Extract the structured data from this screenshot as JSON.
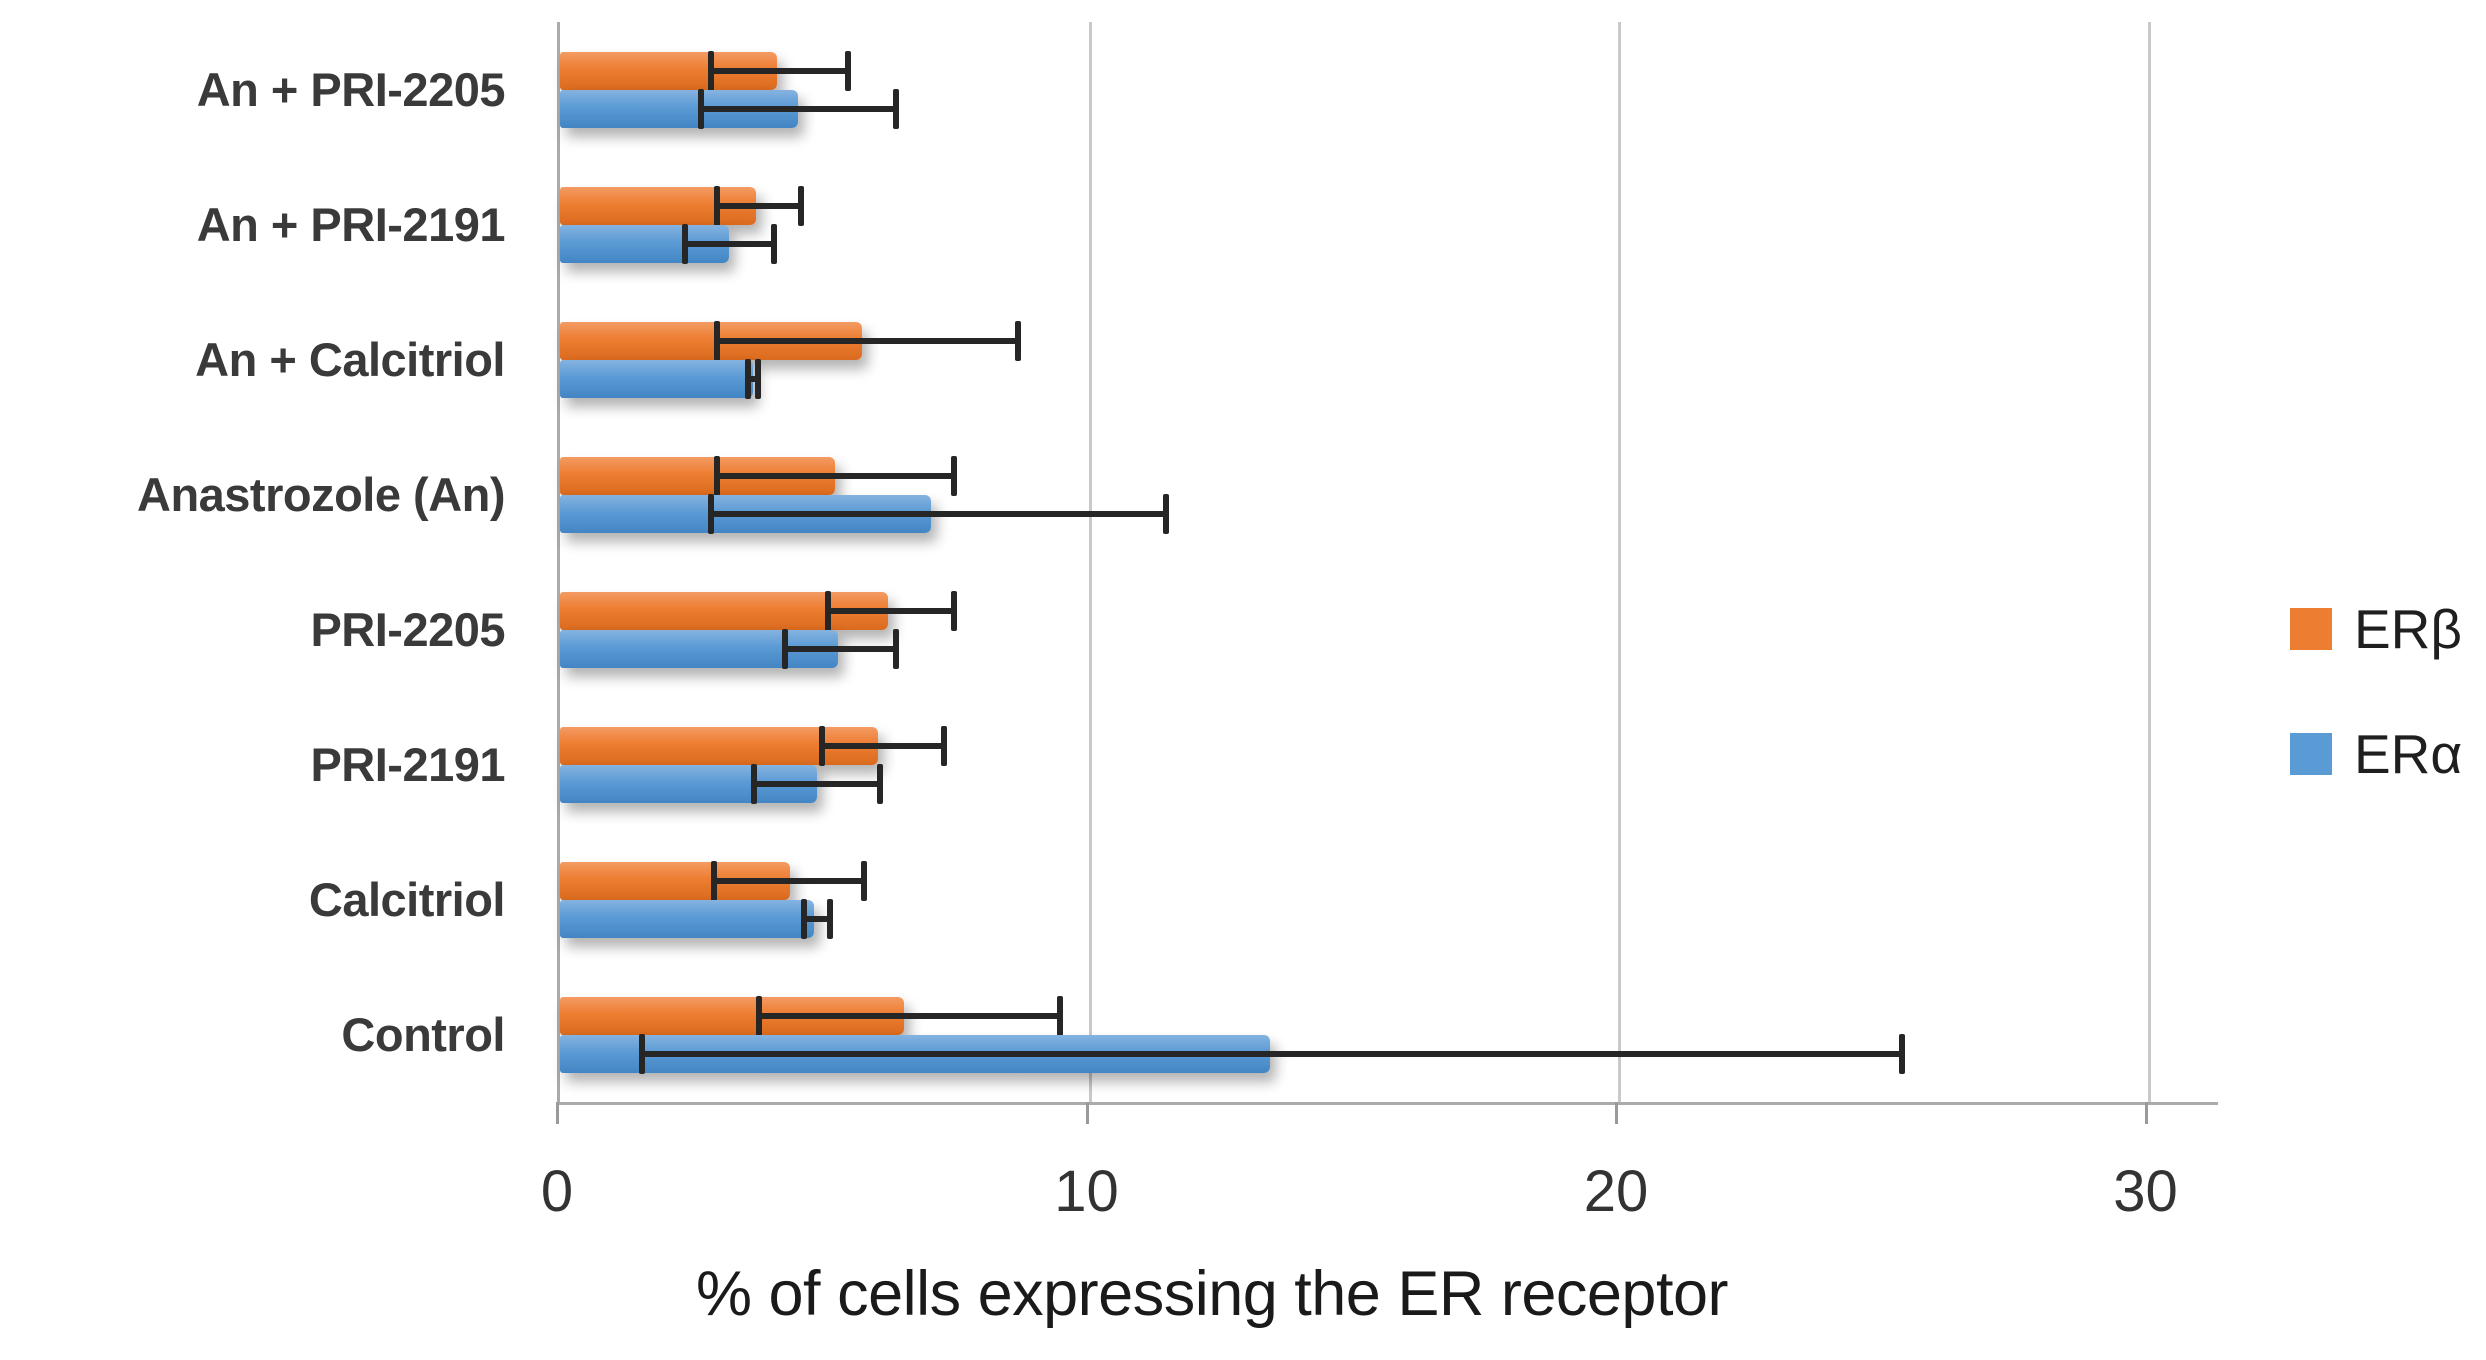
{
  "chart_data": {
    "type": "bar",
    "orientation": "horizontal",
    "title": "",
    "xlabel": "% of cells expressing the ER receptor",
    "ylabel": "",
    "xlim": [
      0,
      31.3
    ],
    "xticks": [
      0,
      10,
      20,
      30
    ],
    "grid": true,
    "legend_position": "right",
    "categories": [
      "An + PRI-2205",
      "An + PRI-2191",
      "An + Calcitriol",
      "Anastrozole (An)",
      "PRI-2205",
      "PRI-2191",
      "Calcitriol",
      "Control"
    ],
    "series": [
      {
        "name": "ERβ",
        "color": "#ED7D31",
        "values": [
          4.1,
          3.7,
          5.7,
          5.2,
          6.2,
          6.0,
          4.35,
          6.5
        ],
        "error_low": [
          2.8,
          2.9,
          2.9,
          2.9,
          5.0,
          4.9,
          2.85,
          3.7
        ],
        "error_high": [
          5.5,
          4.6,
          8.7,
          7.5,
          7.5,
          7.3,
          5.8,
          9.5
        ]
      },
      {
        "name": "ERα",
        "color": "#5B9BD5",
        "values": [
          4.5,
          3.2,
          3.65,
          7.0,
          5.25,
          4.85,
          4.8,
          13.4
        ],
        "error_low": [
          2.6,
          2.3,
          3.5,
          2.8,
          4.2,
          3.6,
          4.55,
          1.5
        ],
        "error_high": [
          6.4,
          4.1,
          3.8,
          11.5,
          6.4,
          6.1,
          5.15,
          25.4
        ]
      }
    ]
  },
  "colors": {
    "bar_orange": "#ED7D31",
    "bar_blue": "#5B9BD5",
    "gridline": "#C9C9C9",
    "axis_line": "#ABABAB",
    "error_bar": "#262626",
    "tick_text": "#333333",
    "category_text": "#3A3A3A",
    "title_text": "#1A1A1A"
  }
}
